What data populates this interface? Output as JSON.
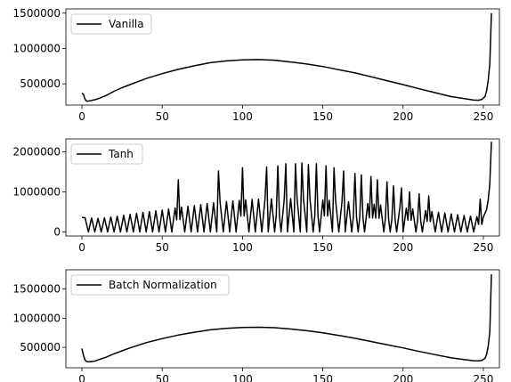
{
  "colors": {
    "line": "#000000",
    "axes": "#000000",
    "legend_border": "#cccccc",
    "background": "#ffffff"
  },
  "chart_data": [
    {
      "type": "line",
      "title": "",
      "xlabel": "",
      "ylabel": "",
      "xlim": [
        -10,
        260
      ],
      "ylim": [
        200000,
        1560000
      ],
      "xticks": [
        0,
        50,
        100,
        150,
        200,
        250
      ],
      "yticks": [
        500000,
        1000000,
        1500000
      ],
      "grid": false,
      "legend": {
        "placement": "upper left",
        "entries": [
          "Vanilla"
        ]
      },
      "series": [
        {
          "name": "Vanilla",
          "points": [
            [
              0,
              370000
            ],
            [
              1,
              350000
            ],
            [
              2,
              280000
            ],
            [
              3,
              255000
            ],
            [
              5,
              260000
            ],
            [
              8,
              275000
            ],
            [
              10,
              290000
            ],
            [
              15,
              335000
            ],
            [
              20,
              395000
            ],
            [
              25,
              445000
            ],
            [
              30,
              490000
            ],
            [
              40,
              575000
            ],
            [
              50,
              645000
            ],
            [
              60,
              705000
            ],
            [
              70,
              755000
            ],
            [
              80,
              800000
            ],
            [
              90,
              825000
            ],
            [
              100,
              838000
            ],
            [
              110,
              843000
            ],
            [
              120,
              835000
            ],
            [
              130,
              810000
            ],
            [
              140,
              780000
            ],
            [
              150,
              745000
            ],
            [
              160,
              700000
            ],
            [
              170,
              655000
            ],
            [
              180,
              600000
            ],
            [
              190,
              545000
            ],
            [
              200,
              490000
            ],
            [
              210,
              430000
            ],
            [
              220,
              375000
            ],
            [
              230,
              320000
            ],
            [
              240,
              285000
            ],
            [
              244,
              270000
            ],
            [
              247,
              268000
            ],
            [
              249,
              280000
            ],
            [
              251,
              320000
            ],
            [
              252,
              400000
            ],
            [
              253,
              550000
            ],
            [
              254,
              780000
            ],
            [
              255,
              1500000
            ]
          ]
        }
      ]
    },
    {
      "type": "line",
      "title": "",
      "xlabel": "",
      "ylabel": "",
      "xlim": [
        -10,
        260
      ],
      "ylim": [
        -100000,
        2320000
      ],
      "xticks": [
        0,
        50,
        100,
        150,
        200,
        250
      ],
      "yticks": [
        0,
        1000000,
        2000000
      ],
      "grid": false,
      "legend": {
        "placement": "upper left",
        "entries": [
          "Tanh"
        ]
      },
      "series": [
        {
          "name": "Tanh",
          "envelope_points": [
            [
              0,
              360000
            ],
            [
              10,
              340000
            ],
            [
              20,
              380000
            ],
            [
              30,
              440000
            ],
            [
              40,
              500000
            ],
            [
              50,
              545000
            ],
            [
              60,
              610000
            ],
            [
              70,
              660000
            ],
            [
              80,
              720000
            ],
            [
              90,
              760000
            ],
            [
              100,
              795000
            ],
            [
              110,
              820000
            ],
            [
              120,
              830000
            ],
            [
              130,
              830000
            ],
            [
              140,
              825000
            ],
            [
              150,
              800000
            ],
            [
              160,
              770000
            ],
            [
              170,
              740000
            ],
            [
              180,
              700000
            ],
            [
              190,
              655000
            ],
            [
              200,
              605000
            ],
            [
              210,
              555000
            ],
            [
              220,
              500000
            ],
            [
              230,
              450000
            ],
            [
              240,
              400000
            ],
            [
              250,
              370000
            ]
          ],
          "oscillation_period": 4,
          "trough_value": 0,
          "spikes": [
            [
              60,
              1300000
            ],
            [
              85,
              1520000
            ],
            [
              100,
              1600000
            ],
            [
              115,
              1620000
            ],
            [
              122,
              1650000
            ],
            [
              127,
              1700000
            ],
            [
              133,
              1700000
            ],
            [
              137,
              1720000
            ],
            [
              141,
              1680000
            ],
            [
              146,
              1700000
            ],
            [
              152,
              1650000
            ],
            [
              157,
              1600000
            ],
            [
              163,
              1520000
            ],
            [
              170,
              1460000
            ],
            [
              174,
              1420000
            ],
            [
              180,
              1380000
            ],
            [
              184,
              1300000
            ],
            [
              190,
              1250000
            ],
            [
              194,
              1150000
            ],
            [
              199,
              1100000
            ],
            [
              204,
              1000000
            ],
            [
              210,
              950000
            ],
            [
              216,
              900000
            ],
            [
              248,
              820000
            ]
          ],
          "tail_points": [
            [
              250,
              380000
            ],
            [
              252,
              560000
            ],
            [
              253,
              800000
            ],
            [
              254,
              1200000
            ],
            [
              255,
              2250000
            ]
          ]
        }
      ]
    },
    {
      "type": "line",
      "title": "",
      "xlabel": "",
      "ylabel": "",
      "xlim": [
        -10,
        260
      ],
      "ylim": [
        150000,
        1830000
      ],
      "xticks": [
        0,
        50,
        100,
        150,
        200,
        250
      ],
      "yticks": [
        500000,
        1000000,
        1500000
      ],
      "grid": false,
      "legend": {
        "placement": "upper left",
        "entries": [
          "Batch Normalization"
        ]
      },
      "series": [
        {
          "name": "Batch Normalization",
          "points": [
            [
              0,
              480000
            ],
            [
              1,
              360000
            ],
            [
              2,
              280000
            ],
            [
              3,
              255000
            ],
            [
              5,
              252000
            ],
            [
              8,
              265000
            ],
            [
              10,
              285000
            ],
            [
              15,
              330000
            ],
            [
              20,
              390000
            ],
            [
              25,
              440000
            ],
            [
              30,
              490000
            ],
            [
              40,
              580000
            ],
            [
              50,
              650000
            ],
            [
              60,
              710000
            ],
            [
              70,
              760000
            ],
            [
              80,
              800000
            ],
            [
              90,
              827000
            ],
            [
              100,
              840000
            ],
            [
              110,
              845000
            ],
            [
              120,
              838000
            ],
            [
              130,
              815000
            ],
            [
              140,
              785000
            ],
            [
              150,
              750000
            ],
            [
              160,
              705000
            ],
            [
              170,
              655000
            ],
            [
              180,
              600000
            ],
            [
              190,
              545000
            ],
            [
              200,
              490000
            ],
            [
              210,
              430000
            ],
            [
              220,
              375000
            ],
            [
              230,
              320000
            ],
            [
              240,
              285000
            ],
            [
              244,
              270000
            ],
            [
              247,
              268000
            ],
            [
              249,
              275000
            ],
            [
              251,
              310000
            ],
            [
              252,
              380000
            ],
            [
              253,
              520000
            ],
            [
              254,
              760000
            ],
            [
              255,
              1750000
            ]
          ]
        }
      ]
    }
  ]
}
